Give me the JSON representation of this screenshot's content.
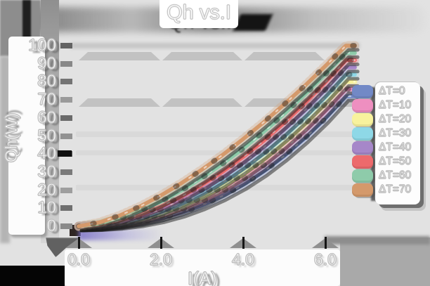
{
  "title": "Qh vs.I",
  "x_axis": {
    "label": "I(A)",
    "tick_labels": [
      "0.0",
      "2.0",
      "4.0",
      "6.0"
    ]
  },
  "y_axis": {
    "label": "Qh(W)",
    "tick_labels": [
      "0",
      "10",
      "20",
      "30",
      "40",
      "50",
      "60",
      "70",
      "80",
      "90",
      "100"
    ]
  },
  "legend": {
    "items": [
      {
        "label": "ΔT=0",
        "color": "#7289c6"
      },
      {
        "label": "ΔT=10",
        "color": "#ee8fc0"
      },
      {
        "label": "ΔT=20",
        "color": "#f8f29d"
      },
      {
        "label": "ΔT=30",
        "color": "#8ed8e7"
      },
      {
        "label": "ΔT=40",
        "color": "#a687c9"
      },
      {
        "label": "ΔT=50",
        "color": "#ed6a6c"
      },
      {
        "label": "ΔT=60",
        "color": "#8ecbaa"
      },
      {
        "label": "ΔT=70",
        "color": "#d4996b"
      }
    ]
  },
  "chart_data": {
    "type": "line",
    "title": "Qh vs.I",
    "xlabel": "I(A)",
    "ylabel": "Qh(W)",
    "xlim": [
      0,
      6.8
    ],
    "ylim": [
      0,
      105
    ],
    "xticks": [
      0,
      2,
      4,
      6
    ],
    "yticks": [
      0,
      10,
      20,
      30,
      40,
      50,
      60,
      70,
      80,
      90,
      100
    ],
    "grid": "horizontal-bands",
    "legend_position": "right",
    "x": [
      0,
      0.5,
      1,
      1.5,
      2,
      2.5,
      3,
      3.5,
      4,
      4.5,
      5,
      5.5,
      6,
      6.5
    ],
    "series": [
      {
        "name": "ΔT=0",
        "color": "#7289c6",
        "values": [
          0,
          0.2,
          0.9,
          2.3,
          4.5,
          7.6,
          11.7,
          16.8,
          22.9,
          30.3,
          38.9,
          48.7,
          59.6,
          72
        ]
      },
      {
        "name": "ΔT=10",
        "color": "#ee8fc0",
        "values": [
          0,
          0.3,
          1.3,
          3.0,
          5.7,
          9.3,
          13.8,
          19.5,
          26.1,
          33.8,
          42.7,
          52.6,
          63.7,
          76
        ]
      },
      {
        "name": "ΔT=20",
        "color": "#f8f29d",
        "values": [
          0,
          0.4,
          1.6,
          3.7,
          6.7,
          10.8,
          15.8,
          21.8,
          28.8,
          36.9,
          46.1,
          56.3,
          67.7,
          80
        ]
      },
      {
        "name": "ΔT=30",
        "color": "#8ed8e7",
        "values": [
          0,
          0.5,
          2.0,
          4.4,
          7.9,
          12.4,
          17.9,
          24.3,
          31.8,
          40.2,
          49.7,
          60.2,
          71.5,
          84
        ]
      },
      {
        "name": "ΔT=40",
        "color": "#a687c9",
        "values": [
          0,
          0.7,
          2.5,
          5.4,
          9.4,
          14.3,
          20.2,
          27.1,
          35.0,
          43.7,
          53.5,
          64.1,
          75.6,
          88
        ]
      },
      {
        "name": "ΔT=50",
        "color": "#ed6a6c",
        "values": [
          0,
          0.9,
          3.1,
          6.6,
          11.0,
          16.5,
          22.9,
          30.2,
          38.4,
          47.4,
          57.3,
          68.1,
          79.7,
          92
        ]
      },
      {
        "name": "ΔT=60",
        "color": "#8ecbaa",
        "values": [
          0,
          1.4,
          4.3,
          8.6,
          13.7,
          19.8,
          26.8,
          34.6,
          43.0,
          52.3,
          62.2,
          72.9,
          84.1,
          96
        ]
      },
      {
        "name": "ΔT=70",
        "color": "#d4996b",
        "values": [
          0,
          2.1,
          6.0,
          11.1,
          17.1,
          23.9,
          31.4,
          39.5,
          48.3,
          57.6,
          67.5,
          77.8,
          88.7,
          100
        ]
      }
    ]
  }
}
